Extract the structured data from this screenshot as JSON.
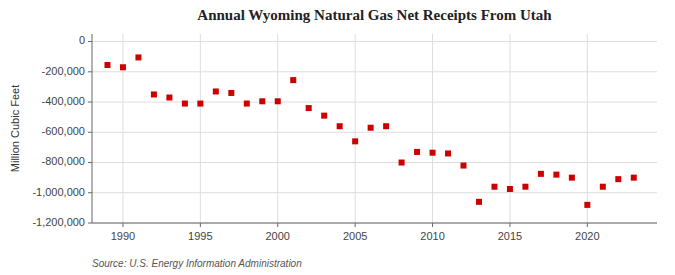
{
  "chart_data": {
    "type": "scatter",
    "title": "Annual Wyoming Natural Gas Net Receipts From Utah",
    "ylabel": "Million Cubic Feet",
    "source": "Source: U.S. Energy Information Administration",
    "color": "#cc0000",
    "marker": "square",
    "grid": true,
    "x": [
      1989,
      1990,
      1991,
      1992,
      1993,
      1994,
      1995,
      1996,
      1997,
      1998,
      1999,
      2000,
      2001,
      2002,
      2003,
      2004,
      2005,
      2006,
      2007,
      2008,
      2009,
      2010,
      2011,
      2012,
      2013,
      2014,
      2015,
      2016,
      2017,
      2018,
      2019,
      2020,
      2021,
      2022,
      2023
    ],
    "values": [
      -155000,
      -170000,
      -105000,
      -350000,
      -370000,
      -410000,
      -410000,
      -330000,
      -340000,
      -410000,
      -395000,
      -395000,
      -255000,
      -440000,
      -490000,
      -560000,
      -660000,
      -570000,
      -560000,
      -800000,
      -730000,
      -735000,
      -740000,
      -820000,
      -1060000,
      -960000,
      -975000,
      -960000,
      -875000,
      -880000,
      -900000,
      -1080000,
      -960000,
      -910000,
      -900000
    ],
    "xlim": [
      1988.0,
      2024.5
    ],
    "ylim": [
      -1200000,
      50000
    ],
    "xticks": [
      1990,
      1995,
      2000,
      2005,
      2010,
      2015,
      2020
    ],
    "yticks": [
      0,
      {
        "value": -200000,
        "label": "-200,000"
      },
      {
        "value": -400000,
        "label": "-400,000"
      },
      {
        "value": -600000,
        "label": "-600,000"
      },
      {
        "value": -800000,
        "label": "-800,000"
      },
      {
        "value": -1000000,
        "label": "-1,000,000"
      },
      {
        "value": -1200000,
        "label": "-1,200,000"
      }
    ]
  }
}
